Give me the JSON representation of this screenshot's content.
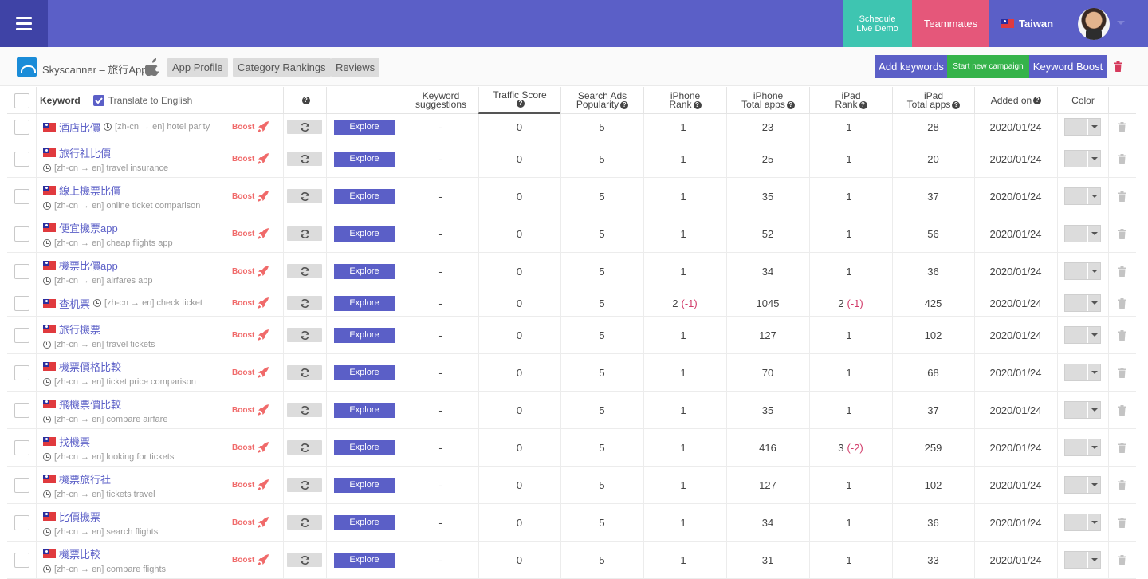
{
  "topbar": {
    "demo_line1": "Schedule",
    "demo_line2": "Live Demo",
    "teammates": "Teammates",
    "country": "Taiwan"
  },
  "app": {
    "name": "Skyscanner – 旅行App",
    "tabs": [
      "App Profile",
      "Category Rankings",
      "Reviews"
    ],
    "add_keywords": "Add keywords",
    "start_campaign": "Start new campaign",
    "keyword_boost": "Keyword Boost"
  },
  "colors": {
    "accent": "#5b5fc7",
    "demo": "#3ec5b1",
    "teammates": "#e5577a",
    "campaign": "#35b34a",
    "boost": "#f06a6a",
    "negative": "#d23c6a"
  },
  "table": {
    "headers": {
      "keyword": "Keyword",
      "translate": "Translate to English",
      "suggestions_1": "Keyword",
      "suggestions_2": "suggestions",
      "traffic": "Traffic Score",
      "ads_1": "Search Ads",
      "ads_2": "Popularity",
      "iphone_rank_1": "iPhone",
      "iphone_rank_2": "Rank",
      "iphone_total_1": "iPhone",
      "iphone_total_2": "Total apps",
      "ipad_rank_1": "iPad",
      "ipad_rank_2": "Rank",
      "ipad_total_1": "iPad",
      "ipad_total_2": "Total apps",
      "added": "Added on",
      "color": "Color"
    },
    "boost_label": "Boost",
    "explore_label": "Explore",
    "rows": [
      {
        "kw": "酒店比價",
        "tr": "[zh-cn → en] hotel parity",
        "inline": true,
        "sugg": "-",
        "traffic": "0",
        "ads": "5",
        "ir": "1",
        "ird": "",
        "it": "23",
        "pr": "1",
        "prd": "",
        "pt": "28",
        "date": "2020/01/24"
      },
      {
        "kw": "旅行社比價",
        "tr": "[zh-cn → en] travel insurance",
        "inline": false,
        "sugg": "-",
        "traffic": "0",
        "ads": "5",
        "ir": "1",
        "ird": "",
        "it": "25",
        "pr": "1",
        "prd": "",
        "pt": "20",
        "date": "2020/01/24"
      },
      {
        "kw": "線上機票比價",
        "tr": "[zh-cn → en] online ticket comparison",
        "inline": false,
        "sugg": "-",
        "traffic": "0",
        "ads": "5",
        "ir": "1",
        "ird": "",
        "it": "35",
        "pr": "1",
        "prd": "",
        "pt": "37",
        "date": "2020/01/24"
      },
      {
        "kw": "便宜機票app",
        "tr": "[zh-cn → en] cheap flights app",
        "inline": false,
        "sugg": "-",
        "traffic": "0",
        "ads": "5",
        "ir": "1",
        "ird": "",
        "it": "52",
        "pr": "1",
        "prd": "",
        "pt": "56",
        "date": "2020/01/24"
      },
      {
        "kw": "機票比價app",
        "tr": "[zh-cn → en] airfares app",
        "inline": false,
        "sugg": "-",
        "traffic": "0",
        "ads": "5",
        "ir": "1",
        "ird": "",
        "it": "34",
        "pr": "1",
        "prd": "",
        "pt": "36",
        "date": "2020/01/24"
      },
      {
        "kw": "查机票",
        "tr": "[zh-cn → en] check ticket",
        "inline": true,
        "sugg": "-",
        "traffic": "0",
        "ads": "5",
        "ir": "2",
        "ird": "(-1)",
        "it": "1045",
        "pr": "2",
        "prd": "(-1)",
        "pt": "425",
        "date": "2020/01/24"
      },
      {
        "kw": "旅行機票",
        "tr": "[zh-cn → en] travel tickets",
        "inline": false,
        "sugg": "-",
        "traffic": "0",
        "ads": "5",
        "ir": "1",
        "ird": "",
        "it": "127",
        "pr": "1",
        "prd": "",
        "pt": "102",
        "date": "2020/01/24"
      },
      {
        "kw": "機票價格比較",
        "tr": "[zh-cn → en] ticket price comparison",
        "inline": false,
        "sugg": "-",
        "traffic": "0",
        "ads": "5",
        "ir": "1",
        "ird": "",
        "it": "70",
        "pr": "1",
        "prd": "",
        "pt": "68",
        "date": "2020/01/24"
      },
      {
        "kw": "飛機票價比較",
        "tr": "[zh-cn → en] compare airfare",
        "inline": false,
        "sugg": "-",
        "traffic": "0",
        "ads": "5",
        "ir": "1",
        "ird": "",
        "it": "35",
        "pr": "1",
        "prd": "",
        "pt": "37",
        "date": "2020/01/24"
      },
      {
        "kw": "找機票",
        "tr": "[zh-cn → en] looking for tickets",
        "inline": false,
        "sugg": "-",
        "traffic": "0",
        "ads": "5",
        "ir": "1",
        "ird": "",
        "it": "416",
        "pr": "3",
        "prd": "(-2)",
        "pt": "259",
        "date": "2020/01/24"
      },
      {
        "kw": "機票旅行社",
        "tr": "[zh-cn → en] tickets travel",
        "inline": false,
        "sugg": "-",
        "traffic": "0",
        "ads": "5",
        "ir": "1",
        "ird": "",
        "it": "127",
        "pr": "1",
        "prd": "",
        "pt": "102",
        "date": "2020/01/24"
      },
      {
        "kw": "比價機票",
        "tr": "[zh-cn → en] search flights",
        "inline": false,
        "sugg": "-",
        "traffic": "0",
        "ads": "5",
        "ir": "1",
        "ird": "",
        "it": "34",
        "pr": "1",
        "prd": "",
        "pt": "36",
        "date": "2020/01/24"
      },
      {
        "kw": "機票比較",
        "tr": "[zh-cn → en] compare flights",
        "inline": false,
        "sugg": "-",
        "traffic": "0",
        "ads": "5",
        "ir": "1",
        "ird": "",
        "it": "31",
        "pr": "1",
        "prd": "",
        "pt": "33",
        "date": "2020/01/24"
      }
    ]
  }
}
